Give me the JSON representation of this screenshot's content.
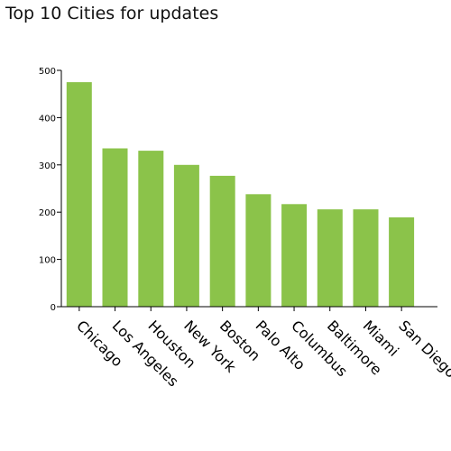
{
  "chart_data": {
    "type": "bar",
    "title": "Top 10 Cities for updates",
    "xlabel": "",
    "ylabel": "",
    "categories": [
      "Chicago",
      "Los Angeles",
      "Houston",
      "New York",
      "Boston",
      "Palo Alto",
      "Columbus",
      "Baltimore",
      "Miami",
      "San Diego"
    ],
    "values": [
      475,
      335,
      330,
      300,
      277,
      238,
      217,
      206,
      206,
      189
    ],
    "ylim": [
      0,
      500
    ],
    "yticks": [
      "0",
      "100",
      "200",
      "300",
      "400",
      "500"
    ],
    "grid": false,
    "bar_color": "#8bc34a",
    "axis_color": "#000000"
  }
}
